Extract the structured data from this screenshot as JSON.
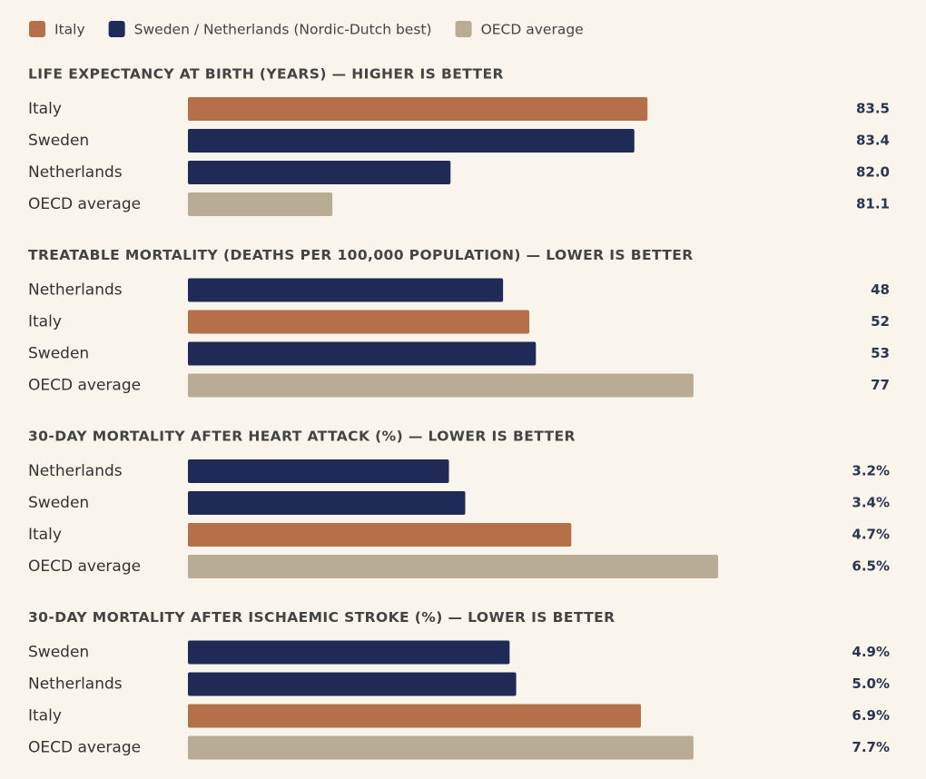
{
  "legend": [
    {
      "name": "Italy",
      "color": "#b5704a"
    },
    {
      "name": "Sweden / Netherlands (Nordic-Dutch best)",
      "color": "#1f2a56"
    },
    {
      "name": "OECD average",
      "color": "#b8ad94"
    }
  ],
  "chart_data": [
    {
      "type": "bar",
      "orientation": "horizontal",
      "title": "LIFE EXPECTANCY AT BIRTH (YEARS) — HIGHER IS BETTER",
      "categories": [
        "Italy",
        "Sweden",
        "Netherlands",
        "OECD average"
      ],
      "values": [
        83.5,
        83.4,
        82.0,
        81.1
      ],
      "value_labels": [
        "83.5",
        "83.4",
        "82.0",
        "81.1"
      ],
      "colors": [
        "#b5704a",
        "#1f2a56",
        "#1f2a56",
        "#b8ad94"
      ],
      "xlim": [
        80,
        84.1
      ]
    },
    {
      "type": "bar",
      "orientation": "horizontal",
      "title": "TREATABLE MORTALITY (DEATHS PER 100,000 POPULATION) — LOWER IS BETTER",
      "categories": [
        "Netherlands",
        "Italy",
        "Sweden",
        "OECD average"
      ],
      "values": [
        48,
        52,
        53,
        77
      ],
      "colors": [
        "#1f2a56",
        "#b5704a",
        "#1f2a56",
        "#b8ad94"
      ],
      "xlim": [
        0,
        82
      ]
    },
    {
      "type": "bar",
      "orientation": "horizontal",
      "title": "30-DAY MORTALITY AFTER HEART ATTACK (%) — LOWER IS BETTER",
      "categories": [
        "Netherlands",
        "Sweden",
        "Italy",
        "OECD average"
      ],
      "values": [
        3.2,
        3.4,
        4.7,
        6.5
      ],
      "value_labels": [
        "3.2%",
        "3.4%",
        "4.7%",
        "6.5%"
      ],
      "colors": [
        "#1f2a56",
        "#1f2a56",
        "#b5704a",
        "#b8ad94"
      ],
      "xlim": [
        0,
        6.6
      ]
    },
    {
      "type": "bar",
      "orientation": "horizontal",
      "title": "30-DAY MORTALITY AFTER ISCHAEMIC STROKE (%) — LOWER IS BETTER",
      "categories": [
        "Sweden",
        "Netherlands",
        "Italy",
        "OECD average"
      ],
      "values": [
        4.9,
        5.0,
        6.9,
        7.7
      ],
      "value_labels": [
        "4.9%",
        "5.0%",
        "6.9%",
        "7.7%"
      ],
      "colors": [
        "#1f2a56",
        "#1f2a56",
        "#b5704a",
        "#b8ad94"
      ],
      "xlim": [
        0,
        8.2
      ]
    }
  ]
}
